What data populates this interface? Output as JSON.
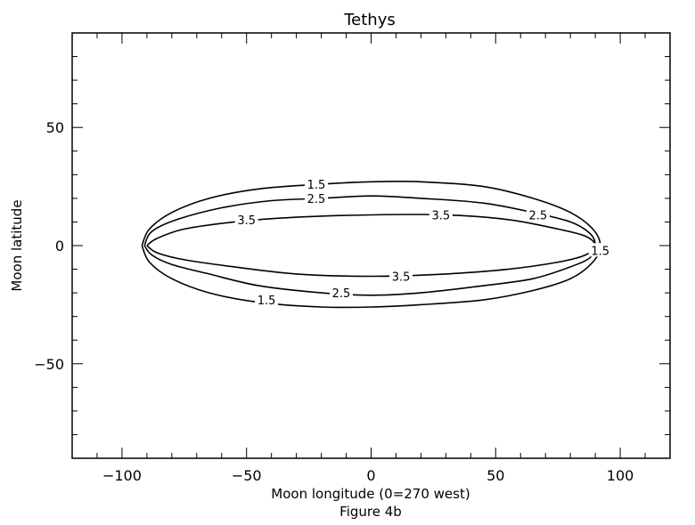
{
  "chart_data": {
    "type": "contour",
    "title": "Tethys",
    "xlabel": "Moon longitude (0=270 west)",
    "ylabel": "Moon latitude",
    "caption": "Figure 4b",
    "xlim": [
      -120,
      120
    ],
    "ylim": [
      -90,
      90
    ],
    "x_ticks": [
      -100,
      -50,
      0,
      50,
      100
    ],
    "y_ticks": [
      -50,
      0,
      50
    ],
    "x_tick_labels": [
      "−100",
      "−50",
      "0",
      "50",
      "100"
    ],
    "y_tick_labels": [
      "−50",
      "0",
      "50"
    ],
    "grid": false,
    "contours": [
      {
        "level": "1.5",
        "points": [
          [
            -92,
            0
          ],
          [
            -89,
            7
          ],
          [
            -80,
            14
          ],
          [
            -65,
            20
          ],
          [
            -45,
            24
          ],
          [
            -20,
            26
          ],
          [
            0,
            27
          ],
          [
            20,
            27
          ],
          [
            45,
            25
          ],
          [
            65,
            20
          ],
          [
            80,
            14
          ],
          [
            89,
            7
          ],
          [
            92,
            0
          ],
          [
            89,
            -7
          ],
          [
            80,
            -14
          ],
          [
            65,
            -19
          ],
          [
            45,
            -23
          ],
          [
            20,
            -25
          ],
          [
            0,
            -26
          ],
          [
            -20,
            -26
          ],
          [
            -45,
            -24
          ],
          [
            -65,
            -20
          ],
          [
            -80,
            -14
          ],
          [
            -89,
            -7
          ],
          [
            -92,
            0
          ]
        ],
        "labels": [
          {
            "text": "1.5",
            "x": -22,
            "y": 26
          },
          {
            "text": "1.5",
            "x": -42,
            "y": -23
          },
          {
            "text": "1.5",
            "x": 92,
            "y": -2
          }
        ]
      },
      {
        "level": "2.5",
        "points": [
          [
            -91,
            0
          ],
          [
            -88,
            6
          ],
          [
            -78,
            11
          ],
          [
            -60,
            16
          ],
          [
            -40,
            19
          ],
          [
            -20,
            20
          ],
          [
            0,
            21
          ],
          [
            20,
            20
          ],
          [
            45,
            18
          ],
          [
            65,
            14
          ],
          [
            80,
            10
          ],
          [
            88,
            5
          ],
          [
            90,
            0
          ],
          [
            88,
            -5
          ],
          [
            80,
            -9
          ],
          [
            65,
            -14
          ],
          [
            45,
            -17
          ],
          [
            20,
            -20
          ],
          [
            0,
            -21
          ],
          [
            -20,
            -20
          ],
          [
            -45,
            -17
          ],
          [
            -65,
            -12
          ],
          [
            -80,
            -8
          ],
          [
            -88,
            -4
          ],
          [
            -91,
            0
          ]
        ],
        "labels": [
          {
            "text": "2.5",
            "x": -22,
            "y": 20
          },
          {
            "text": "2.5",
            "x": 67,
            "y": 13
          },
          {
            "text": "2.5",
            "x": -12,
            "y": -20
          }
        ]
      },
      {
        "level": "3.5",
        "points": [
          [
            -90,
            0
          ],
          [
            -86,
            3
          ],
          [
            -75,
            7
          ],
          [
            -55,
            10
          ],
          [
            -30,
            12
          ],
          [
            0,
            13
          ],
          [
            30,
            13
          ],
          [
            55,
            11
          ],
          [
            75,
            7
          ],
          [
            86,
            4
          ],
          [
            90,
            0
          ],
          [
            86,
            -4
          ],
          [
            75,
            -7
          ],
          [
            55,
            -10
          ],
          [
            30,
            -12
          ],
          [
            0,
            -13
          ],
          [
            -30,
            -12
          ],
          [
            -55,
            -9
          ],
          [
            -75,
            -6
          ],
          [
            -86,
            -3
          ],
          [
            -90,
            0
          ]
        ],
        "labels": [
          {
            "text": "3.5",
            "x": -50,
            "y": 11
          },
          {
            "text": "3.5",
            "x": 28,
            "y": 13
          },
          {
            "text": "3.5",
            "x": 12,
            "y": -13
          }
        ]
      }
    ]
  }
}
